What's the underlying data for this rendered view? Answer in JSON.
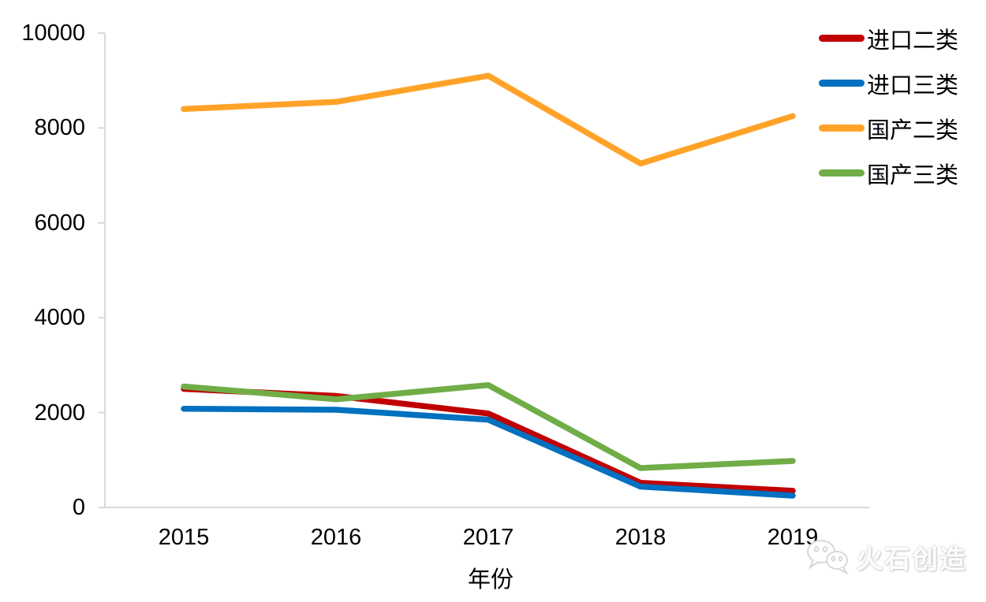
{
  "chart_data": {
    "type": "line",
    "title": "",
    "xlabel": "年份",
    "ylabel": "",
    "categories": [
      "2015",
      "2016",
      "2017",
      "2018",
      "2019"
    ],
    "ylim": [
      0,
      10000
    ],
    "yticks": [
      0,
      2000,
      4000,
      6000,
      8000,
      10000
    ],
    "ytick_labels": [
      "0",
      "2000",
      "4000",
      "6000",
      "8000",
      "10000"
    ],
    "grid": false,
    "legend_position": "right",
    "axis_color": "#D9D9D9",
    "series": [
      {
        "name": "进口二类",
        "color": "#C00000",
        "values": [
          2500,
          2350,
          1980,
          520,
          350
        ]
      },
      {
        "name": "进口三类",
        "color": "#0070C0",
        "values": [
          2080,
          2060,
          1850,
          440,
          250
        ]
      },
      {
        "name": "国产二类",
        "color": "#FFA328",
        "values": [
          8400,
          8550,
          9100,
          7250,
          8250
        ]
      },
      {
        "name": "国产三类",
        "color": "#70AD47",
        "values": [
          2550,
          2280,
          2580,
          830,
          980
        ]
      }
    ]
  },
  "watermark": {
    "text": "火石创造",
    "icon": "wechat-logo-icon"
  }
}
